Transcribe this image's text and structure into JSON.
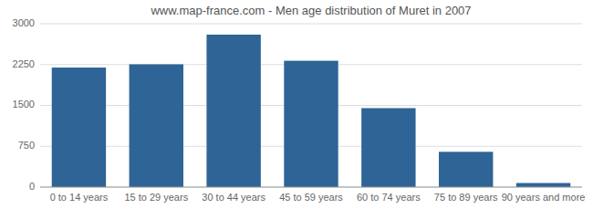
{
  "chart_data": {
    "type": "bar",
    "title": "www.map-france.com - Men age distribution of Muret in 2007",
    "categories": [
      "0 to 14 years",
      "15 to 29 years",
      "30 to 44 years",
      "45 to 59 years",
      "60 to 74 years",
      "75 to 89 years",
      "90 years and more"
    ],
    "values": [
      2195,
      2255,
      2800,
      2320,
      1450,
      648,
      75
    ],
    "color": "#2e6496",
    "ylim": [
      0,
      3000
    ],
    "yticks": [
      0,
      750,
      1500,
      2250,
      3000
    ],
    "grid": true
  }
}
